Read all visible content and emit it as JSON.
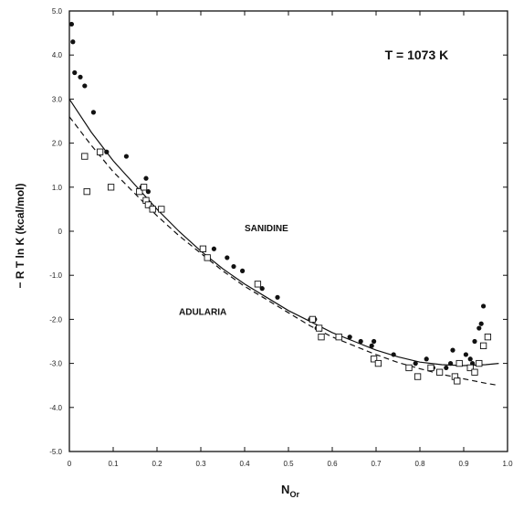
{
  "chart_data": {
    "type": "scatter",
    "title": "",
    "xlabel": "N",
    "xlabel_sub": "Or",
    "ylabel": "− R T  ln K   (kcal/mol)",
    "xlim": [
      0,
      1.0
    ],
    "ylim": [
      -5.0,
      5.0
    ],
    "grid": false,
    "legend": "none",
    "x_ticks": [
      0,
      0.1,
      0.2,
      0.3,
      0.4,
      0.5,
      0.6,
      0.7,
      0.8,
      0.9,
      1.0
    ],
    "x_tick_labels": [
      "0",
      "0.1",
      "0.2",
      "0.3",
      "0.4",
      "0.5",
      "0.6",
      "0.7",
      "0.8",
      "0.9",
      "1.0"
    ],
    "y_ticks": [
      -5,
      -4,
      -3,
      -2,
      -1,
      0,
      1,
      2,
      3,
      4,
      5
    ],
    "y_tick_labels": [
      "-5.0",
      "-4.0",
      "-3.0",
      "-2.0",
      "-1.0",
      "0",
      "1.0",
      "2.0",
      "3.0",
      "4.0",
      "5.0"
    ],
    "annotations": [
      {
        "text": "T   =   1073  K",
        "x": 0.72,
        "y": 3.9
      },
      {
        "text": "SANIDINE",
        "x": 0.4,
        "y": 0.0
      },
      {
        "text": "ADULARIA",
        "x": 0.25,
        "y": -1.9
      }
    ],
    "series": [
      {
        "marker": "filled-circle",
        "x": [
          0.005,
          0.008,
          0.012,
          0.025,
          0.035,
          0.055,
          0.085,
          0.13,
          0.165,
          0.175,
          0.18,
          0.33,
          0.36,
          0.375,
          0.395,
          0.43,
          0.44,
          0.475,
          0.55,
          0.56,
          0.565,
          0.64,
          0.665,
          0.69,
          0.695,
          0.74,
          0.79,
          0.815,
          0.83,
          0.86,
          0.87,
          0.875,
          0.905,
          0.915,
          0.92,
          0.925,
          0.935,
          0.94,
          0.945
        ],
        "y": [
          4.7,
          4.3,
          3.6,
          3.5,
          3.3,
          2.7,
          1.8,
          1.7,
          1.0,
          1.2,
          0.9,
          -0.4,
          -0.6,
          -0.8,
          -0.9,
          -1.2,
          -1.3,
          -1.5,
          -2.0,
          -2.0,
          -2.2,
          -2.4,
          -2.5,
          -2.6,
          -2.5,
          -2.8,
          -3.0,
          -2.9,
          -3.1,
          -3.1,
          -3.0,
          -2.7,
          -2.8,
          -2.9,
          -3.0,
          -2.5,
          -2.2,
          -2.1,
          -1.7
        ]
      },
      {
        "marker": "open-square",
        "x": [
          0.035,
          0.04,
          0.07,
          0.095,
          0.16,
          0.17,
          0.175,
          0.18,
          0.19,
          0.21,
          0.305,
          0.315,
          0.43,
          0.555,
          0.57,
          0.575,
          0.615,
          0.695,
          0.705,
          0.775,
          0.795,
          0.825,
          0.845,
          0.88,
          0.885,
          0.89,
          0.915,
          0.925,
          0.935,
          0.945,
          0.955
        ],
        "y": [
          1.7,
          0.9,
          1.8,
          1.0,
          0.9,
          1.0,
          0.7,
          0.6,
          0.5,
          0.5,
          -0.4,
          -0.6,
          -1.2,
          -2.0,
          -2.2,
          -2.4,
          -2.4,
          -2.9,
          -3.0,
          -3.1,
          -3.3,
          -3.1,
          -3.2,
          -3.3,
          -3.4,
          -3.0,
          -3.1,
          -3.2,
          -3.0,
          -2.6,
          -2.4
        ]
      }
    ],
    "fitted_curves": [
      {
        "style": "solid",
        "x": [
          0.0,
          0.05,
          0.1,
          0.15,
          0.2,
          0.25,
          0.3,
          0.35,
          0.4,
          0.45,
          0.5,
          0.55,
          0.6,
          0.65,
          0.7,
          0.75,
          0.8,
          0.85,
          0.9,
          0.95,
          0.98
        ],
        "y": [
          3.0,
          2.25,
          1.6,
          1.05,
          0.5,
          0.0,
          -0.45,
          -0.85,
          -1.2,
          -1.5,
          -1.8,
          -2.05,
          -2.3,
          -2.5,
          -2.7,
          -2.85,
          -2.97,
          -3.03,
          -3.05,
          -3.03,
          -3.0
        ]
      },
      {
        "style": "dashed",
        "x": [
          0.0,
          0.05,
          0.1,
          0.15,
          0.2,
          0.25,
          0.3,
          0.35,
          0.4,
          0.45,
          0.5,
          0.55,
          0.6,
          0.65,
          0.7,
          0.75,
          0.8,
          0.85,
          0.9,
          0.95,
          0.98
        ],
        "y": [
          2.6,
          1.95,
          1.35,
          0.85,
          0.35,
          -0.1,
          -0.5,
          -0.9,
          -1.25,
          -1.55,
          -1.85,
          -2.15,
          -2.4,
          -2.6,
          -2.8,
          -2.98,
          -3.12,
          -3.25,
          -3.35,
          -3.45,
          -3.5
        ]
      }
    ]
  }
}
